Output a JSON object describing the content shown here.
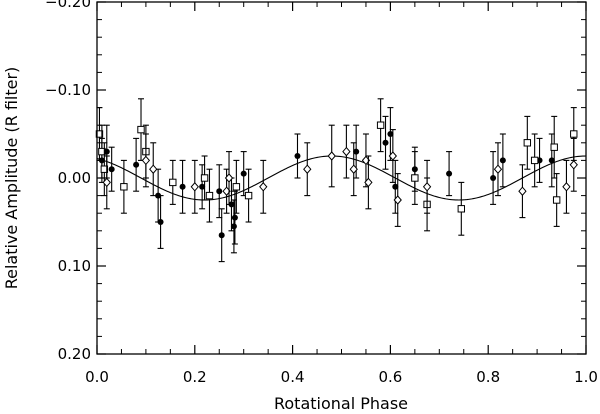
{
  "chart_data": {
    "type": "scatter",
    "title": "",
    "xlabel": "Rotational Phase",
    "ylabel": "Relative Amplitude (R filter)",
    "xlim": [
      0.0,
      1.0
    ],
    "ylim": [
      0.2,
      -0.2
    ],
    "y_inverted": true,
    "grid": false,
    "legend": "none",
    "x_ticks": [
      {
        "value": 0.0,
        "label": "0.0"
      },
      {
        "value": 0.2,
        "label": "0.2"
      },
      {
        "value": 0.4,
        "label": "0.4"
      },
      {
        "value": 0.6,
        "label": "0.6"
      },
      {
        "value": 0.8,
        "label": "0.8"
      },
      {
        "value": 1.0,
        "label": "1.0"
      }
    ],
    "y_ticks": [
      {
        "value": -0.2,
        "label": "−0.20"
      },
      {
        "value": -0.1,
        "label": "−0.10"
      },
      {
        "value": 0.0,
        "label": "0.00"
      },
      {
        "value": 0.1,
        "label": "0.10"
      },
      {
        "value": 0.2,
        "label": "0.20"
      }
    ],
    "fit_curve": {
      "form": "sinusoid",
      "amplitude": 0.025,
      "peak_phase": 0.48,
      "period": 0.52
    },
    "series": [
      {
        "marker": "filled-circle",
        "points": [
          {
            "x": 0.01,
            "y": -0.02,
            "err": 0.025
          },
          {
            "x": 0.02,
            "y": -0.03,
            "err": 0.03
          },
          {
            "x": 0.03,
            "y": -0.01,
            "err": 0.025
          },
          {
            "x": 0.08,
            "y": -0.015,
            "err": 0.03
          },
          {
            "x": 0.125,
            "y": 0.02,
            "err": 0.03
          },
          {
            "x": 0.13,
            "y": 0.05,
            "err": 0.03
          },
          {
            "x": 0.175,
            "y": 0.01,
            "err": 0.03
          },
          {
            "x": 0.215,
            "y": 0.01,
            "err": 0.025
          },
          {
            "x": 0.25,
            "y": 0.015,
            "err": 0.03
          },
          {
            "x": 0.255,
            "y": 0.065,
            "err": 0.03
          },
          {
            "x": 0.275,
            "y": 0.03,
            "err": 0.03
          },
          {
            "x": 0.28,
            "y": 0.055,
            "err": 0.03
          },
          {
            "x": 0.282,
            "y": 0.045,
            "err": 0.03
          },
          {
            "x": 0.3,
            "y": -0.005,
            "err": 0.025
          },
          {
            "x": 0.41,
            "y": -0.025,
            "err": 0.025
          },
          {
            "x": 0.53,
            "y": -0.03,
            "err": 0.03
          },
          {
            "x": 0.59,
            "y": -0.04,
            "err": 0.03
          },
          {
            "x": 0.6,
            "y": -0.05,
            "err": 0.03
          },
          {
            "x": 0.61,
            "y": 0.01,
            "err": 0.03
          },
          {
            "x": 0.65,
            "y": -0.01,
            "err": 0.025
          },
          {
            "x": 0.72,
            "y": -0.005,
            "err": 0.025
          },
          {
            "x": 0.81,
            "y": 0.0,
            "err": 0.03
          },
          {
            "x": 0.83,
            "y": -0.02,
            "err": 0.03
          },
          {
            "x": 0.905,
            "y": -0.02,
            "err": 0.025
          },
          {
            "x": 0.93,
            "y": -0.02,
            "err": 0.03
          }
        ]
      },
      {
        "marker": "open-square",
        "points": [
          {
            "x": 0.005,
            "y": -0.05,
            "err": 0.03
          },
          {
            "x": 0.01,
            "y": -0.03,
            "err": 0.03
          },
          {
            "x": 0.015,
            "y": -0.01,
            "err": 0.03
          },
          {
            "x": 0.09,
            "y": -0.055,
            "err": 0.035
          },
          {
            "x": 0.1,
            "y": -0.03,
            "err": 0.03
          },
          {
            "x": 0.055,
            "y": 0.01,
            "err": 0.03
          },
          {
            "x": 0.155,
            "y": 0.005,
            "err": 0.025
          },
          {
            "x": 0.22,
            "y": 0.0,
            "err": 0.025
          },
          {
            "x": 0.23,
            "y": 0.02,
            "err": 0.03
          },
          {
            "x": 0.285,
            "y": 0.01,
            "err": 0.03
          },
          {
            "x": 0.31,
            "y": 0.02,
            "err": 0.03
          },
          {
            "x": 0.58,
            "y": -0.06,
            "err": 0.03
          },
          {
            "x": 0.65,
            "y": 0.0,
            "err": 0.03
          },
          {
            "x": 0.675,
            "y": 0.03,
            "err": 0.03
          },
          {
            "x": 0.745,
            "y": 0.035,
            "err": 0.03
          },
          {
            "x": 0.88,
            "y": -0.04,
            "err": 0.03
          },
          {
            "x": 0.895,
            "y": -0.02,
            "err": 0.03
          },
          {
            "x": 0.935,
            "y": -0.035,
            "err": 0.035
          },
          {
            "x": 0.94,
            "y": 0.025,
            "err": 0.03
          },
          {
            "x": 0.975,
            "y": -0.05,
            "err": 0.03
          }
        ]
      },
      {
        "marker": "open-diamond",
        "points": [
          {
            "x": 0.02,
            "y": 0.005,
            "err": 0.03
          },
          {
            "x": 0.1,
            "y": -0.02,
            "err": 0.03
          },
          {
            "x": 0.115,
            "y": -0.01,
            "err": 0.03
          },
          {
            "x": 0.2,
            "y": 0.01,
            "err": 0.03
          },
          {
            "x": 0.265,
            "y": 0.015,
            "err": 0.025
          },
          {
            "x": 0.27,
            "y": 0.0,
            "err": 0.03
          },
          {
            "x": 0.34,
            "y": 0.01,
            "err": 0.03
          },
          {
            "x": 0.43,
            "y": -0.01,
            "err": 0.03
          },
          {
            "x": 0.48,
            "y": -0.025,
            "err": 0.035
          },
          {
            "x": 0.51,
            "y": -0.03,
            "err": 0.03
          },
          {
            "x": 0.525,
            "y": -0.01,
            "err": 0.03
          },
          {
            "x": 0.55,
            "y": -0.02,
            "err": 0.03
          },
          {
            "x": 0.555,
            "y": 0.005,
            "err": 0.03
          },
          {
            "x": 0.605,
            "y": -0.025,
            "err": 0.03
          },
          {
            "x": 0.615,
            "y": 0.025,
            "err": 0.03
          },
          {
            "x": 0.675,
            "y": 0.01,
            "err": 0.03
          },
          {
            "x": 0.82,
            "y": -0.01,
            "err": 0.03
          },
          {
            "x": 0.87,
            "y": 0.015,
            "err": 0.03
          },
          {
            "x": 0.96,
            "y": 0.01,
            "err": 0.03
          },
          {
            "x": 0.975,
            "y": -0.015,
            "err": 0.03
          }
        ]
      }
    ]
  }
}
